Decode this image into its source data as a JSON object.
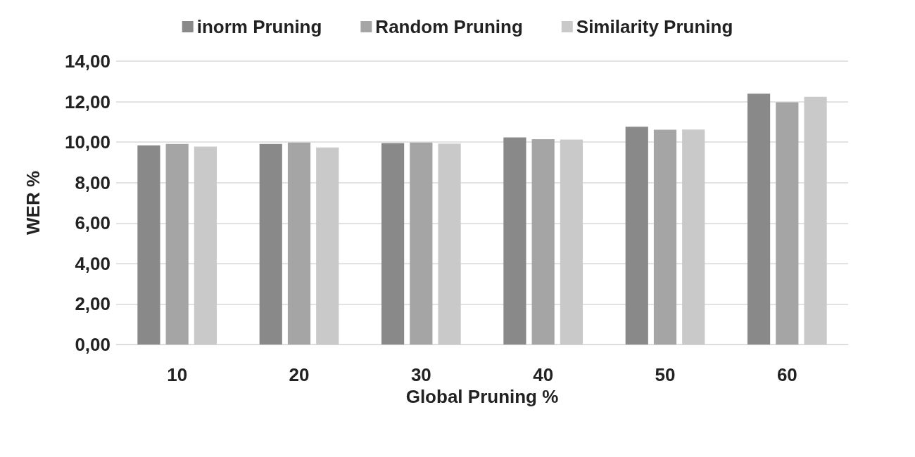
{
  "chart_data": {
    "type": "bar",
    "xlabel": "Global Pruning %",
    "ylabel": "WER %",
    "categories": [
      "10",
      "20",
      "30",
      "40",
      "50",
      "60"
    ],
    "series": [
      {
        "name": "inorm Pruning",
        "color": "#898989",
        "values": [
          9.84,
          9.91,
          9.95,
          10.23,
          10.76,
          12.39
        ]
      },
      {
        "name": "Random Pruning",
        "color": "#a5a5a5",
        "values": [
          9.91,
          9.98,
          9.98,
          10.14,
          10.61,
          11.97
        ]
      },
      {
        "name": "Similarity Pruning",
        "color": "#c9c9c9",
        "values": [
          9.78,
          9.74,
          9.93,
          10.13,
          10.62,
          12.24
        ]
      }
    ],
    "ylim": [
      0,
      14
    ],
    "yticks": [
      {
        "value": 0,
        "label": "0,00"
      },
      {
        "value": 2,
        "label": "2,00"
      },
      {
        "value": 4,
        "label": "4,00"
      },
      {
        "value": 6,
        "label": "6,00"
      },
      {
        "value": 8,
        "label": "8,00"
      },
      {
        "value": 10,
        "label": "10,00"
      },
      {
        "value": 12,
        "label": "12,00"
      },
      {
        "value": 14,
        "label": "14,00"
      }
    ],
    "grid": "y",
    "legend": "top"
  }
}
